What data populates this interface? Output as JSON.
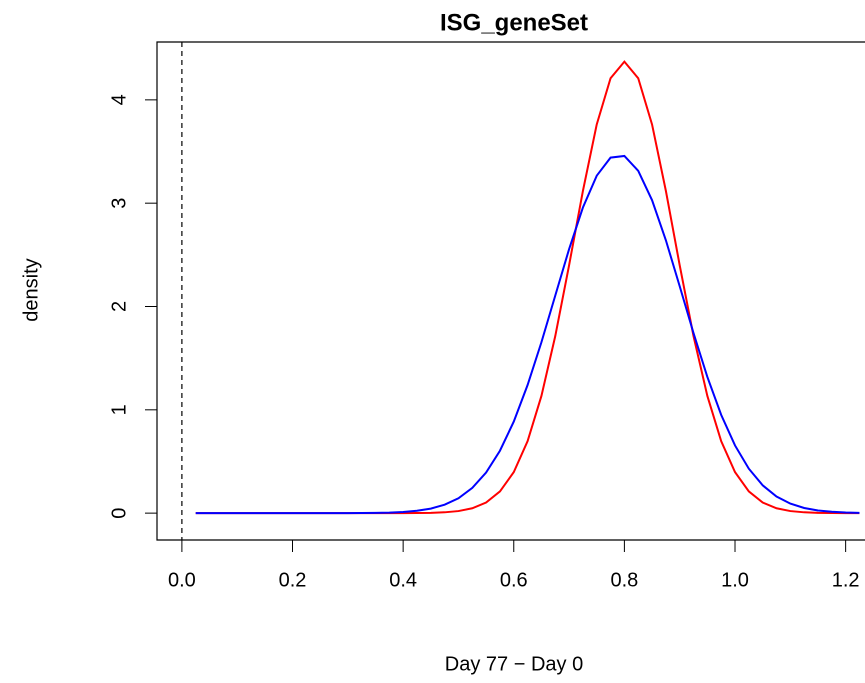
{
  "chart_data": {
    "type": "line",
    "title": "ISG_geneSet",
    "x_label": "Day 77 − Day 0",
    "y_label": "density",
    "x": [
      0.025,
      0.05,
      0.075,
      0.1,
      0.125,
      0.15,
      0.175,
      0.2,
      0.225,
      0.25,
      0.275,
      0.3,
      0.325,
      0.35,
      0.375,
      0.4,
      0.425,
      0.45,
      0.475,
      0.5,
      0.525,
      0.55,
      0.575,
      0.6,
      0.625,
      0.65,
      0.675,
      0.7,
      0.725,
      0.75,
      0.775,
      0.8,
      0.825,
      0.85,
      0.875,
      0.9,
      0.925,
      0.95,
      0.975,
      1.0,
      1.025,
      1.05,
      1.075,
      1.1,
      1.125,
      1.15,
      1.175,
      1.2,
      1.225
    ],
    "series": [
      {
        "color": "#ff0000",
        "values": [
          0,
          0,
          0,
          0,
          0,
          0,
          0,
          0,
          0,
          0,
          0,
          0,
          0,
          0,
          0,
          0,
          0.001,
          0.003,
          0.008,
          0.02,
          0.047,
          0.103,
          0.21,
          0.397,
          0.697,
          1.134,
          1.713,
          2.399,
          3.119,
          3.762,
          4.209,
          4.37,
          4.209,
          3.762,
          3.119,
          2.399,
          1.713,
          1.134,
          0.697,
          0.397,
          0.21,
          0.103,
          0.047,
          0.02,
          0.008,
          0.003,
          0.001,
          0,
          0
        ]
      },
      {
        "color": "#0000ff",
        "values": [
          0,
          0,
          0,
          0,
          0,
          0,
          0,
          0,
          0,
          0,
          0,
          0,
          0.001,
          0.002,
          0.005,
          0.011,
          0.023,
          0.044,
          0.082,
          0.144,
          0.244,
          0.393,
          0.604,
          0.886,
          1.24,
          1.654,
          2.105,
          2.555,
          2.958,
          3.266,
          3.441,
          3.457,
          3.313,
          3.029,
          2.641,
          2.196,
          1.742,
          1.318,
          0.951,
          0.655,
          0.43,
          0.269,
          0.161,
          0.092,
          0.05,
          0.026,
          0.013,
          0.006,
          0.003
        ]
      }
    ],
    "vline": 0,
    "xlim": [
      -0.045,
      1.235
    ],
    "ylim": [
      -0.26,
      4.56
    ],
    "xticks": [
      {
        "value": 0,
        "label": "0.0"
      },
      0.2,
      0.4,
      0.6,
      0.8,
      {
        "value": 1,
        "label": "1.0"
      },
      1.2
    ],
    "yticks": [
      0,
      1,
      2,
      3,
      4
    ]
  }
}
